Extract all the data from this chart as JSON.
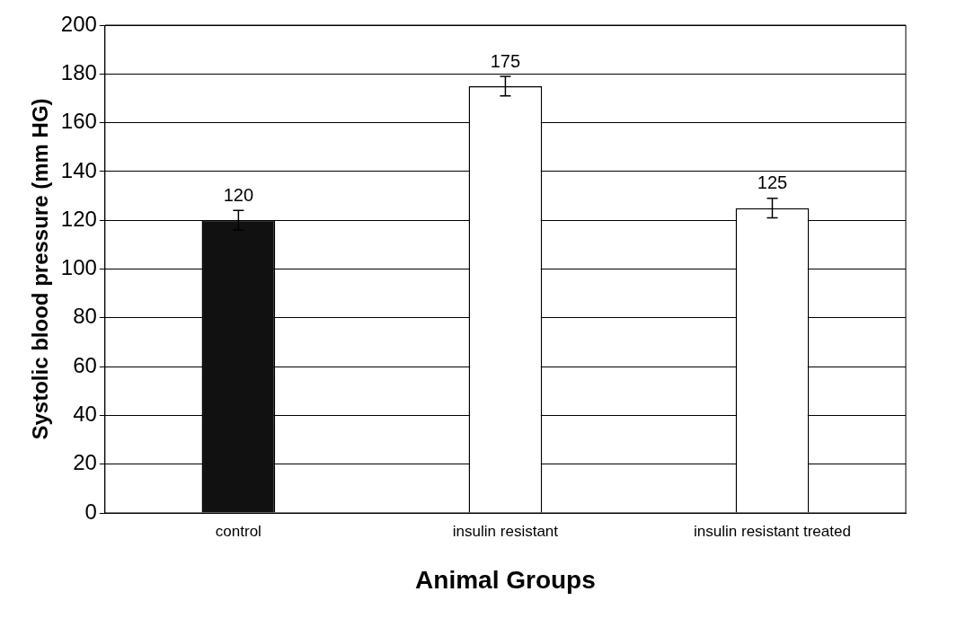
{
  "chart_data": {
    "type": "bar",
    "xlabel": "Animal Groups",
    "ylabel": "Systolic blood pressure (mm HG)",
    "categories": [
      "control",
      "insulin resistant",
      "insulin resistant treated"
    ],
    "values": [
      120,
      175,
      125
    ],
    "colors": [
      "#111111",
      "#ffffff",
      "#ffffff"
    ],
    "errors": [
      4,
      4,
      4
    ],
    "ylim": [
      0,
      200
    ],
    "yticks": [
      0,
      20,
      40,
      60,
      80,
      100,
      120,
      140,
      160,
      180,
      200
    ],
    "grid": "y",
    "legend": false,
    "data_labels": true
  }
}
